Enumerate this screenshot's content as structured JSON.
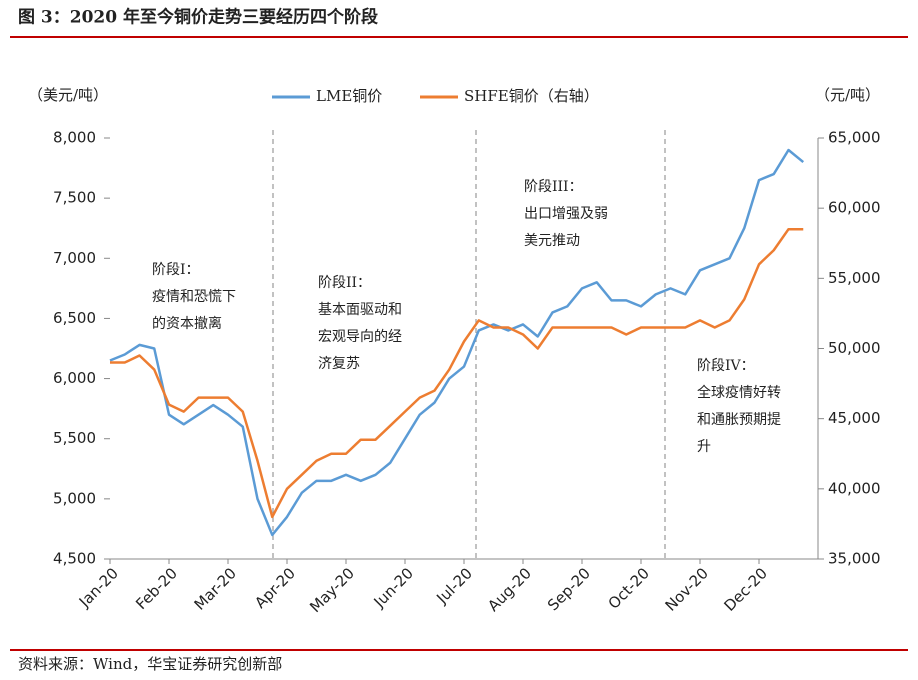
{
  "chart_data": {
    "type": "line",
    "title": "图 3：2020 年至今铜价走势三要经历四个阶段",
    "source": "资料来源：Wind，华宝证券研究创新部",
    "y_label": "（美元/吨）",
    "y2_label": "（元/吨）",
    "categories": [
      "Jan-20",
      null,
      null,
      null,
      "Feb-20",
      null,
      null,
      null,
      "Mar-20",
      null,
      null,
      null,
      "Apr-20",
      null,
      null,
      null,
      "May-20",
      null,
      null,
      null,
      "Jun-20",
      null,
      null,
      null,
      "Jul-20",
      null,
      null,
      null,
      "Aug-20",
      null,
      null,
      null,
      "Sep-20",
      null,
      null,
      null,
      "Oct-20",
      null,
      null,
      null,
      "Nov-20",
      null,
      null,
      null,
      "Dec-20",
      null,
      null,
      null
    ],
    "series": [
      {
        "name": "LME铜价",
        "color": "#5b9bd5",
        "values": [
          6150,
          6200,
          6280,
          6250,
          5700,
          5620,
          5700,
          5780,
          5700,
          5600,
          5000,
          4700,
          4850,
          5050,
          5150,
          5150,
          5200,
          5150,
          5200,
          5300,
          5500,
          5700,
          5800,
          6000,
          6100,
          6400,
          6450,
          6400,
          6450,
          6350,
          6550,
          6600,
          6750,
          6800,
          6650,
          6650,
          6600,
          6700,
          6750,
          6700,
          6900,
          6950,
          7000,
          7250,
          7650,
          7700,
          7900,
          7800
        ]
      },
      {
        "name": "SHFE铜价（右轴）",
        "color": "#ed7d31",
        "axis": "y2",
        "values": [
          49000,
          49000,
          49500,
          48500,
          46000,
          45500,
          46500,
          46500,
          46500,
          45500,
          42000,
          38000,
          40000,
          41000,
          42000,
          42500,
          42500,
          43500,
          43500,
          44500,
          45500,
          46500,
          47000,
          48500,
          50500,
          52000,
          51500,
          51500,
          51000,
          50000,
          51500,
          51500,
          51500,
          51500,
          51500,
          51000,
          51500,
          51500,
          51500,
          51500,
          52000,
          51500,
          52000,
          53500,
          56000,
          57000,
          58500,
          58500
        ]
      }
    ],
    "ylim": [
      4500,
      8000
    ],
    "yticks": [
      {
        "value": 4500,
        "label": "4,500"
      },
      {
        "value": 5000,
        "label": "5,000"
      },
      {
        "value": 5500,
        "label": "5,500"
      },
      {
        "value": 6000,
        "label": "6,000"
      },
      {
        "value": 6500,
        "label": "6,500"
      },
      {
        "value": 7000,
        "label": "7,000"
      },
      {
        "value": 7500,
        "label": "7,500"
      },
      {
        "value": 8000,
        "label": "8,000"
      }
    ],
    "y2lim": [
      35000,
      65000
    ],
    "y2ticks": [
      {
        "value": 35000,
        "label": "35,000"
      },
      {
        "value": 40000,
        "label": "40,000"
      },
      {
        "value": 45000,
        "label": "45,000"
      },
      {
        "value": 50000,
        "label": "50,000"
      },
      {
        "value": 55000,
        "label": "55,000"
      },
      {
        "value": 60000,
        "label": "60,000"
      },
      {
        "value": 65000,
        "label": "65,000"
      }
    ],
    "annotations": [
      [
        "阶段I：",
        "疫情和恐慌下",
        "的资本撤离"
      ],
      [
        "阶段II：",
        "基本面驱动和",
        "宏观导向的经",
        "济复苏"
      ],
      [
        "阶段III：",
        "出口增强及弱",
        "美元推动"
      ],
      [
        "阶段IV：",
        "全球疫情好转",
        "和通胀预期提",
        "升"
      ]
    ]
  }
}
